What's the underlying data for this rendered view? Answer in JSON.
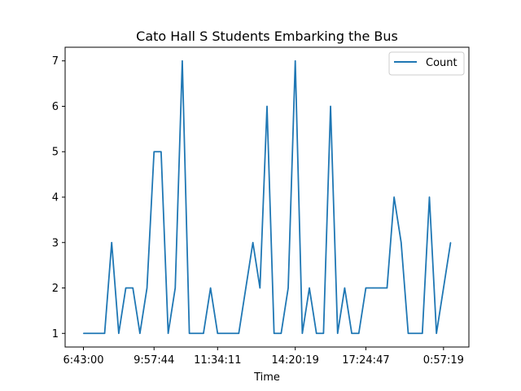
{
  "chart_data": {
    "type": "line",
    "title": "Cato Hall S Students Embarking the Bus",
    "xlabel": "Time",
    "ylabel": "",
    "x_tick_labels": [
      "6:43:00",
      "9:57:44",
      "11:34:11",
      "14:20:19",
      "17:24:47",
      "0:57:19"
    ],
    "x_tick_positions": [
      0,
      10,
      19,
      30,
      40,
      51
    ],
    "ylim": [
      0.7,
      7.3
    ],
    "yticks": [
      1,
      2,
      3,
      4,
      5,
      6,
      7
    ],
    "legend": {
      "placement": "top-right",
      "entries": [
        "Count"
      ]
    },
    "grid": false,
    "series": [
      {
        "name": "Count",
        "color": "#1f77b4",
        "values": [
          1,
          1,
          1,
          1,
          3,
          1,
          2,
          2,
          1,
          2,
          5,
          5,
          1,
          2,
          7,
          1,
          1,
          1,
          2,
          1,
          1,
          1,
          1,
          2,
          3,
          2,
          6,
          1,
          1,
          2,
          7,
          1,
          2,
          1,
          1,
          6,
          1,
          2,
          1,
          1,
          2,
          2,
          2,
          2,
          4,
          3,
          1,
          1,
          1,
          4,
          1,
          2,
          3
        ]
      }
    ]
  }
}
